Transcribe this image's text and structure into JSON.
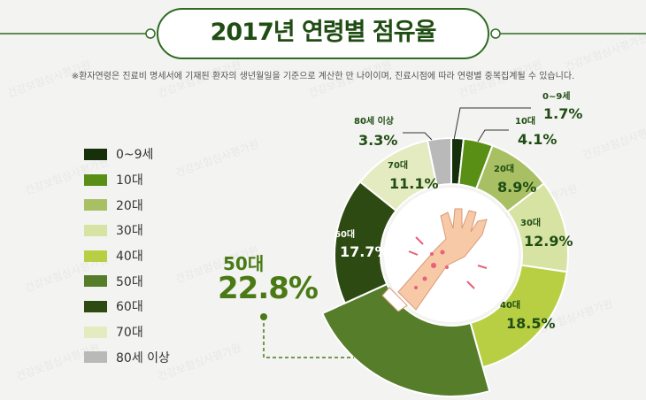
{
  "title": "2017년 연령별 점유율",
  "note": "※환자연령은 진료비 명세서에 기재된 환자의 생년월일을 기준으로 계산한 만 나이이며, 진료시점에 따라 연령별 중복집계될 수 있습니다.",
  "watermark": "건강보험심사평가원",
  "chart_data": {
    "type": "pie",
    "title": "2017년 연령별 점유율",
    "unit": "%",
    "categories": [
      "0~9세",
      "10대",
      "20대",
      "30대",
      "40대",
      "50대",
      "60대",
      "70대",
      "80세 이상"
    ],
    "values": [
      1.7,
      4.1,
      8.9,
      12.9,
      18.5,
      22.8,
      17.7,
      11.1,
      3.3
    ],
    "value_labels": [
      "1.7%",
      "4.1%",
      "8.9%",
      "12.9%",
      "18.5%",
      "22.8%",
      "17.7%",
      "11.1%",
      "3.3%"
    ],
    "colors": [
      "#16300b",
      "#5a8f15",
      "#a8c063",
      "#d7e3a3",
      "#b9cf43",
      "#567d2a",
      "#2d4a12",
      "#e4ebc0",
      "#b9b9b9"
    ],
    "legend_position": "left",
    "donut": true,
    "highlighted": "50대"
  }
}
